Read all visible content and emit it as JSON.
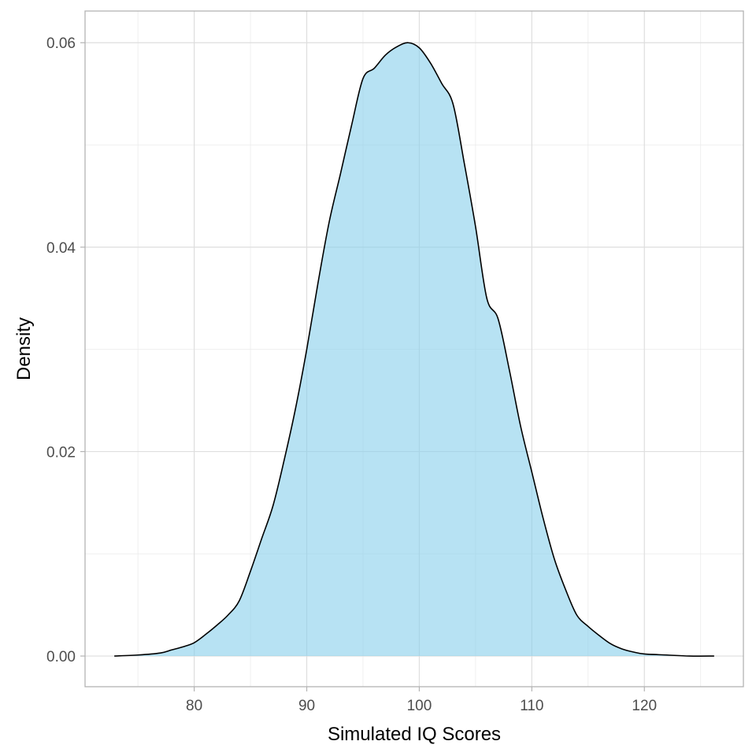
{
  "chart_data": {
    "type": "area",
    "title": "",
    "xlabel": "Simulated IQ Scores",
    "ylabel": "Density",
    "xlim": [
      70.3,
      128.8
    ],
    "ylim": [
      -0.003,
      0.0631
    ],
    "x_ticks": [
      80,
      90,
      100,
      110,
      120
    ],
    "x_tick_labels": [
      "80",
      "90",
      "100",
      "110",
      "120"
    ],
    "y_ticks": [
      0,
      0.02,
      0.04,
      0.06
    ],
    "y_tick_labels": [
      "0.00",
      "0.02",
      "0.04",
      "0.06"
    ],
    "x_minor_ticks": [
      75,
      85,
      95,
      105,
      115,
      125
    ],
    "y_minor_ticks": [
      0.01,
      0.03,
      0.05
    ],
    "grid": true,
    "legend": "none",
    "fill_color": "#87CEEB",
    "fill_opacity": 0.6,
    "line_color": "#000000",
    "series": [
      {
        "x": [
          72.9,
          75,
          77,
          78,
          79,
          80,
          81,
          82,
          83,
          84,
          85,
          86,
          87,
          88,
          89,
          90,
          91,
          92,
          93,
          94,
          95,
          96,
          97,
          98,
          99,
          100,
          101,
          102,
          103,
          104,
          105,
          106,
          107,
          108,
          109,
          110,
          111,
          112,
          113,
          114,
          115,
          116,
          117,
          118,
          119,
          120,
          122,
          124,
          126.2
        ],
        "y": [
          0.0,
          0.0001,
          0.0003,
          0.0006,
          0.0009,
          0.0013,
          0.0021,
          0.003,
          0.004,
          0.0054,
          0.0083,
          0.0115,
          0.0147,
          0.0192,
          0.0242,
          0.03,
          0.0365,
          0.0425,
          0.0472,
          0.052,
          0.0565,
          0.0575,
          0.0588,
          0.0596,
          0.06,
          0.0595,
          0.058,
          0.056,
          0.054,
          0.0482,
          0.042,
          0.035,
          0.033,
          0.028,
          0.0225,
          0.018,
          0.0135,
          0.0095,
          0.0065,
          0.004,
          0.0029,
          0.002,
          0.0012,
          0.0007,
          0.0004,
          0.0002,
          0.0001,
          0.0,
          0.0
        ]
      }
    ]
  }
}
